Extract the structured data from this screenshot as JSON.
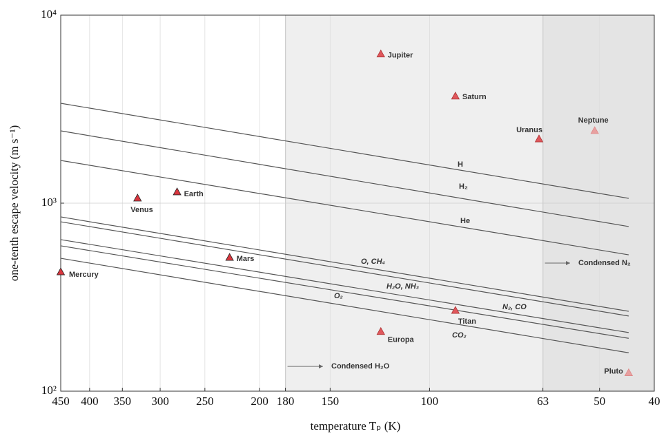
{
  "chart_data": {
    "type": "scatter",
    "xlabel": "temperature Tₚ (K)",
    "ylabel": "one-tenth escape velocity (m s⁻¹)",
    "xscale": "log",
    "yscale": "log",
    "xlim": [
      450,
      40
    ],
    "ylim": [
      100,
      10000
    ],
    "xticks": [
      450,
      400,
      350,
      300,
      250,
      200,
      180,
      150,
      100,
      63,
      50,
      40
    ],
    "yticks": [
      {
        "value": 100,
        "label": "10²"
      },
      {
        "value": 1000,
        "label": "10³"
      },
      {
        "value": 10000,
        "label": "10⁴"
      }
    ],
    "grid": true,
    "regions": [
      {
        "from": 180,
        "to": 40,
        "color": "#efefef",
        "label": "Condensed H₂O"
      },
      {
        "from": 63,
        "to": 40,
        "color": "#e4e4e4",
        "label": "Condensed N₂"
      }
    ],
    "points": [
      {
        "name": "Mercury",
        "x": 450,
        "y": 430,
        "color": "#d9363e"
      },
      {
        "name": "Venus",
        "x": 329,
        "y": 1061,
        "color": "#d9363e"
      },
      {
        "name": "Earth",
        "x": 280,
        "y": 1145,
        "color": "#d9363e"
      },
      {
        "name": "Mars",
        "x": 226,
        "y": 513,
        "color": "#d9363e"
      },
      {
        "name": "Jupiter",
        "x": 122,
        "y": 6200,
        "color": "#e0575c"
      },
      {
        "name": "Saturn",
        "x": 90,
        "y": 3700,
        "color": "#e0575c"
      },
      {
        "name": "Uranus",
        "x": 64,
        "y": 2190,
        "color": "#e0575c"
      },
      {
        "name": "Neptune",
        "x": 51,
        "y": 2424,
        "color": "#e8a0a0"
      },
      {
        "name": "Titan",
        "x": 90,
        "y": 268,
        "color": "#e0575c"
      },
      {
        "name": "Europa",
        "x": 122,
        "y": 207,
        "color": "#e0575c"
      },
      {
        "name": "Pluto",
        "x": 44.4,
        "y": 125,
        "color": "#e8a0a0"
      }
    ],
    "series": [
      {
        "name": "H",
        "color": "#555555",
        "x": [
          450,
          44.4
        ],
        "values": [
          3398,
          1061
        ]
      },
      {
        "name": "H₂",
        "color": "#555555",
        "x": [
          450,
          44.4
        ],
        "values": [
          2424,
          751
        ]
      },
      {
        "name": "He",
        "color": "#555555",
        "x": [
          450,
          44.4
        ],
        "values": [
          1687,
          531
        ]
      },
      {
        "name": "O, CH₄",
        "color": "#555555",
        "x": [
          450,
          44.4
        ],
        "values": [
          845,
          266
        ]
      },
      {
        "name": "N₂, CO",
        "color": "#555555",
        "x": [
          450,
          44.4
        ],
        "values": [
          796,
          251
        ]
      },
      {
        "name": "H₂O, NH₃",
        "color": "#555555",
        "x": [
          450,
          44.4
        ],
        "values": [
          640,
          205
        ]
      },
      {
        "name": "O₂",
        "color": "#555555",
        "x": [
          450,
          44.4
        ],
        "values": [
          593,
          191
        ]
      },
      {
        "name": "CO₂",
        "color": "#555555",
        "x": [
          450,
          44.4
        ],
        "values": [
          509,
          160
        ]
      }
    ]
  }
}
